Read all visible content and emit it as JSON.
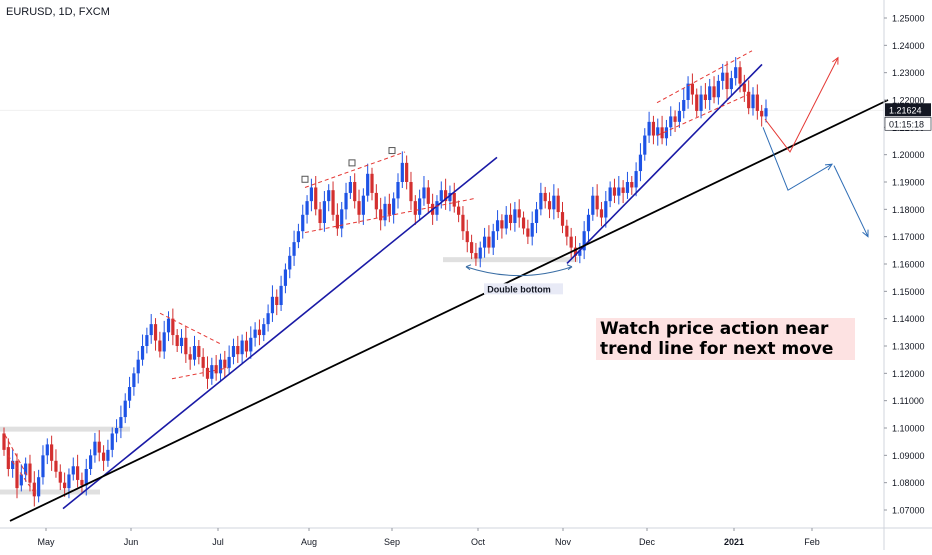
{
  "chart_data": {
    "type": "candlestick",
    "ticker": "EURUSD, 1D, FXCM",
    "x_tick_labels": [
      "May",
      "Jun",
      "Jul",
      "Aug",
      "Sep",
      "Oct",
      "Nov",
      "Dec",
      "2021",
      "Feb"
    ],
    "y_tick_labels": [
      "1.07000",
      "1.08000",
      "1.09000",
      "1.10000",
      "1.11000",
      "1.12000",
      "1.13000",
      "1.14000",
      "1.15000",
      "1.16000",
      "1.17000",
      "1.18000",
      "1.19000",
      "1.20000",
      "1.21000",
      "1.22000",
      "1.23000",
      "1.24000",
      "1.25000"
    ],
    "ylim": [
      1.065,
      1.255
    ],
    "current_price": "1.21624",
    "countdown": "01:15:18",
    "annotations": {
      "double_bottom_label": "Double bottom",
      "callout_line1": "Watch price action near",
      "callout_line2": "trend line for next move"
    },
    "colors": {
      "up": "#1e53e5",
      "down": "#d32f2f",
      "trendline_blue": "#1a1aa6",
      "trendline_black": "#000000",
      "price_label_bg": "#131722",
      "callout_bg": "#fde2e2"
    },
    "grid": false,
    "candles_ohlc_anchor_path": [
      [
        1.098,
        1.092
      ],
      [
        1.093,
        1.085
      ],
      [
        1.085,
        1.088
      ],
      [
        1.088,
        1.078
      ],
      [
        1.079,
        1.083
      ],
      [
        1.083,
        1.087
      ],
      [
        1.087,
        1.08
      ],
      [
        1.08,
        1.075
      ],
      [
        1.075,
        1.082
      ],
      [
        1.082,
        1.09
      ],
      [
        1.09,
        1.094
      ],
      [
        1.094,
        1.088
      ],
      [
        1.088,
        1.084
      ],
      [
        1.084,
        1.08
      ],
      [
        1.08,
        1.078
      ],
      [
        1.078,
        1.083
      ],
      [
        1.083,
        1.086
      ],
      [
        1.086,
        1.081
      ],
      [
        1.081,
        1.079
      ],
      [
        1.079,
        1.085
      ],
      [
        1.085,
        1.09
      ],
      [
        1.09,
        1.095
      ],
      [
        1.095,
        1.091
      ],
      [
        1.091,
        1.088
      ],
      [
        1.088,
        1.092
      ],
      [
        1.092,
        1.098
      ],
      [
        1.098,
        1.1
      ],
      [
        1.1,
        1.104
      ],
      [
        1.104,
        1.11
      ],
      [
        1.11,
        1.115
      ],
      [
        1.115,
        1.12
      ],
      [
        1.12,
        1.125
      ],
      [
        1.125,
        1.13
      ],
      [
        1.13,
        1.134
      ],
      [
        1.134,
        1.138
      ],
      [
        1.138,
        1.132
      ],
      [
        1.132,
        1.128
      ],
      [
        1.128,
        1.135
      ],
      [
        1.135,
        1.14
      ],
      [
        1.14,
        1.134
      ],
      [
        1.134,
        1.13
      ],
      [
        1.13,
        1.133
      ],
      [
        1.133,
        1.127
      ],
      [
        1.127,
        1.125
      ],
      [
        1.125,
        1.13
      ],
      [
        1.13,
        1.126
      ],
      [
        1.126,
        1.122
      ],
      [
        1.122,
        1.118
      ],
      [
        1.118,
        1.123
      ],
      [
        1.123,
        1.12
      ],
      [
        1.12,
        1.125
      ],
      [
        1.125,
        1.122
      ],
      [
        1.122,
        1.126
      ],
      [
        1.126,
        1.13
      ],
      [
        1.13,
        1.127
      ],
      [
        1.127,
        1.132
      ],
      [
        1.132,
        1.128
      ],
      [
        1.128,
        1.133
      ],
      [
        1.133,
        1.136
      ],
      [
        1.136,
        1.134
      ],
      [
        1.134,
        1.138
      ],
      [
        1.138,
        1.142
      ],
      [
        1.142,
        1.148
      ],
      [
        1.148,
        1.145
      ],
      [
        1.145,
        1.152
      ],
      [
        1.152,
        1.158
      ],
      [
        1.158,
        1.163
      ],
      [
        1.163,
        1.168
      ],
      [
        1.168,
        1.172
      ],
      [
        1.172,
        1.178
      ],
      [
        1.178,
        1.183
      ],
      [
        1.183,
        1.188
      ],
      [
        1.188,
        1.18
      ],
      [
        1.18,
        1.175
      ],
      [
        1.175,
        1.183
      ],
      [
        1.183,
        1.187
      ],
      [
        1.187,
        1.178
      ],
      [
        1.178,
        1.173
      ],
      [
        1.173,
        1.18
      ],
      [
        1.18,
        1.186
      ],
      [
        1.186,
        1.19
      ],
      [
        1.19,
        1.183
      ],
      [
        1.183,
        1.178
      ],
      [
        1.178,
        1.185
      ],
      [
        1.185,
        1.193
      ],
      [
        1.193,
        1.186
      ],
      [
        1.186,
        1.18
      ],
      [
        1.18,
        1.176
      ],
      [
        1.176,
        1.182
      ],
      [
        1.182,
        1.178
      ],
      [
        1.178,
        1.184
      ],
      [
        1.184,
        1.19
      ],
      [
        1.19,
        1.197
      ],
      [
        1.197,
        1.19
      ],
      [
        1.19,
        1.183
      ],
      [
        1.183,
        1.178
      ],
      [
        1.178,
        1.184
      ],
      [
        1.184,
        1.188
      ],
      [
        1.188,
        1.182
      ],
      [
        1.182,
        1.178
      ],
      [
        1.178,
        1.183
      ],
      [
        1.183,
        1.187
      ],
      [
        1.187,
        1.183
      ],
      [
        1.183,
        1.186
      ],
      [
        1.186,
        1.181
      ],
      [
        1.181,
        1.178
      ],
      [
        1.178,
        1.172
      ],
      [
        1.172,
        1.168
      ],
      [
        1.168,
        1.164
      ],
      [
        1.164,
        1.162
      ],
      [
        1.162,
        1.166
      ],
      [
        1.166,
        1.17
      ],
      [
        1.17,
        1.166
      ],
      [
        1.166,
        1.172
      ],
      [
        1.172,
        1.176
      ],
      [
        1.176,
        1.173
      ],
      [
        1.173,
        1.178
      ],
      [
        1.178,
        1.175
      ],
      [
        1.175,
        1.18
      ],
      [
        1.18,
        1.177
      ],
      [
        1.177,
        1.173
      ],
      [
        1.173,
        1.17
      ],
      [
        1.17,
        1.175
      ],
      [
        1.175,
        1.18
      ],
      [
        1.18,
        1.186
      ],
      [
        1.186,
        1.183
      ],
      [
        1.183,
        1.18
      ],
      [
        1.18,
        1.185
      ],
      [
        1.185,
        1.179
      ],
      [
        1.179,
        1.174
      ],
      [
        1.174,
        1.17
      ],
      [
        1.17,
        1.166
      ],
      [
        1.166,
        1.163
      ],
      [
        1.163,
        1.165
      ],
      [
        1.165,
        1.172
      ],
      [
        1.172,
        1.178
      ],
      [
        1.178,
        1.185
      ],
      [
        1.185,
        1.18
      ],
      [
        1.18,
        1.177
      ],
      [
        1.177,
        1.183
      ],
      [
        1.183,
        1.188
      ],
      [
        1.188,
        1.185
      ],
      [
        1.185,
        1.188
      ],
      [
        1.188,
        1.186
      ],
      [
        1.186,
        1.19
      ],
      [
        1.19,
        1.188
      ],
      [
        1.188,
        1.194
      ],
      [
        1.194,
        1.2
      ],
      [
        1.2,
        1.207
      ],
      [
        1.207,
        1.212
      ],
      [
        1.212,
        1.207
      ],
      [
        1.207,
        1.21
      ],
      [
        1.21,
        1.206
      ],
      [
        1.206,
        1.21
      ],
      [
        1.21,
        1.214
      ],
      [
        1.214,
        1.212
      ],
      [
        1.212,
        1.216
      ],
      [
        1.216,
        1.22
      ],
      [
        1.22,
        1.226
      ],
      [
        1.226,
        1.222
      ],
      [
        1.222,
        1.216
      ],
      [
        1.216,
        1.222
      ],
      [
        1.222,
        1.22
      ],
      [
        1.22,
        1.225
      ],
      [
        1.225,
        1.221
      ],
      [
        1.221,
        1.227
      ],
      [
        1.227,
        1.23
      ],
      [
        1.23,
        1.224
      ],
      [
        1.224,
        1.228
      ],
      [
        1.228,
        1.232
      ],
      [
        1.232,
        1.226
      ],
      [
        1.226,
        1.223
      ],
      [
        1.223,
        1.217
      ],
      [
        1.217,
        1.222
      ],
      [
        1.222,
        1.216
      ],
      [
        1.216,
        1.214
      ],
      [
        1.214,
        1.217
      ]
    ],
    "trendlines": {
      "blue_1": [
        [
          1.07,
          "2020-05-06"
        ],
        [
          1.199,
          "2020-08-26"
        ]
      ],
      "blue_2": [
        [
          1.16,
          "2020-10-31"
        ],
        [
          1.233,
          "2021-01-07"
        ]
      ],
      "black": [
        [
          1.066,
          "2020-04-24"
        ],
        [
          1.218,
          "2021-02-16"
        ]
      ]
    },
    "support_zones": [
      1.099,
      1.077,
      1.162
    ],
    "double_bottom_range": [
      "Sep",
      "Nov"
    ]
  }
}
